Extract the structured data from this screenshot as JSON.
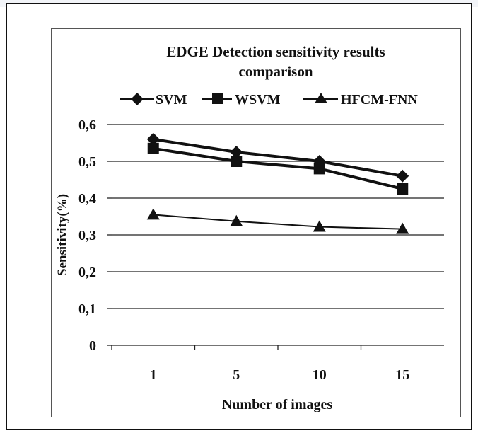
{
  "chart_data": {
    "type": "line",
    "title_line1": "EDGE Detection sensitivity results",
    "title_line2": "comparison",
    "xlabel": "Number of images",
    "ylabel": "Sensitivity(%)",
    "categories": [
      "1",
      "5",
      "10",
      "15"
    ],
    "ylim": [
      0,
      0.6
    ],
    "yticks": [
      "0",
      "0,1",
      "0,2",
      "0,3",
      "0,4",
      "0,5",
      "0,6"
    ],
    "legend_position": "top",
    "series": [
      {
        "name": "SVM",
        "values": [
          0.56,
          0.525,
          0.5,
          0.46
        ],
        "marker": "diamond"
      },
      {
        "name": "WSVM",
        "values": [
          0.535,
          0.5,
          0.48,
          0.425
        ],
        "marker": "square"
      },
      {
        "name": "HFCM-FNN",
        "values": [
          0.355,
          0.337,
          0.322,
          0.316
        ],
        "marker": "triangle"
      }
    ],
    "grid": true
  }
}
